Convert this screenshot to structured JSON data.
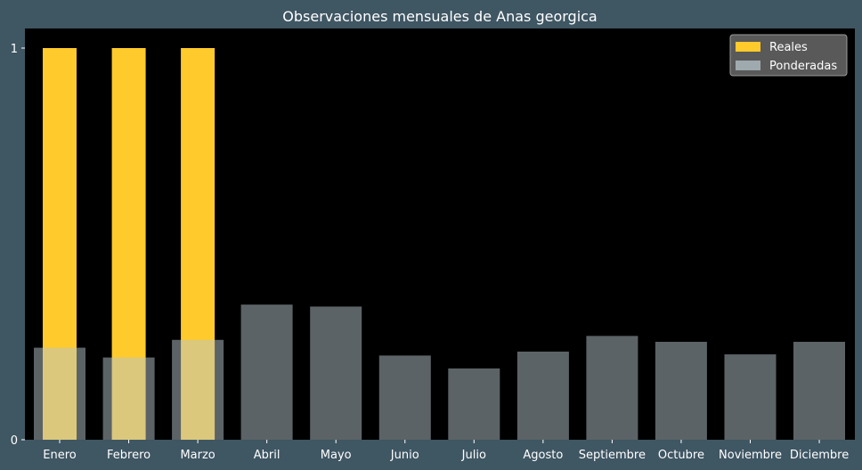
{
  "chart_data": {
    "type": "bar",
    "title": "Observaciones mensuales de Anas georgica",
    "xlabel": "",
    "ylabel": "",
    "categories": [
      "Enero",
      "Febrero",
      "Marzo",
      "Abril",
      "Mayo",
      "Junio",
      "Julio",
      "Agosto",
      "Septiembre",
      "Octubre",
      "Noviembre",
      "Diciembre"
    ],
    "series": [
      {
        "name": "Reales",
        "color": "#ffca2c",
        "values": [
          1,
          1,
          1,
          0,
          0,
          0,
          0,
          0,
          0,
          0,
          0,
          0
        ]
      },
      {
        "name": "Ponderadas",
        "color": "#b7c5cc",
        "opacity": 0.5,
        "values": [
          0.235,
          0.21,
          0.255,
          0.345,
          0.34,
          0.215,
          0.182,
          0.225,
          0.265,
          0.25,
          0.218,
          0.25
        ]
      }
    ],
    "ylim": [
      0,
      1.05
    ],
    "yticks": [
      0,
      1
    ],
    "grid": false,
    "legend": "top-right"
  },
  "colors": {
    "background": "#3f5663",
    "plot_background": "#000000",
    "text": "#ffffff",
    "legend_background": "#595959"
  }
}
